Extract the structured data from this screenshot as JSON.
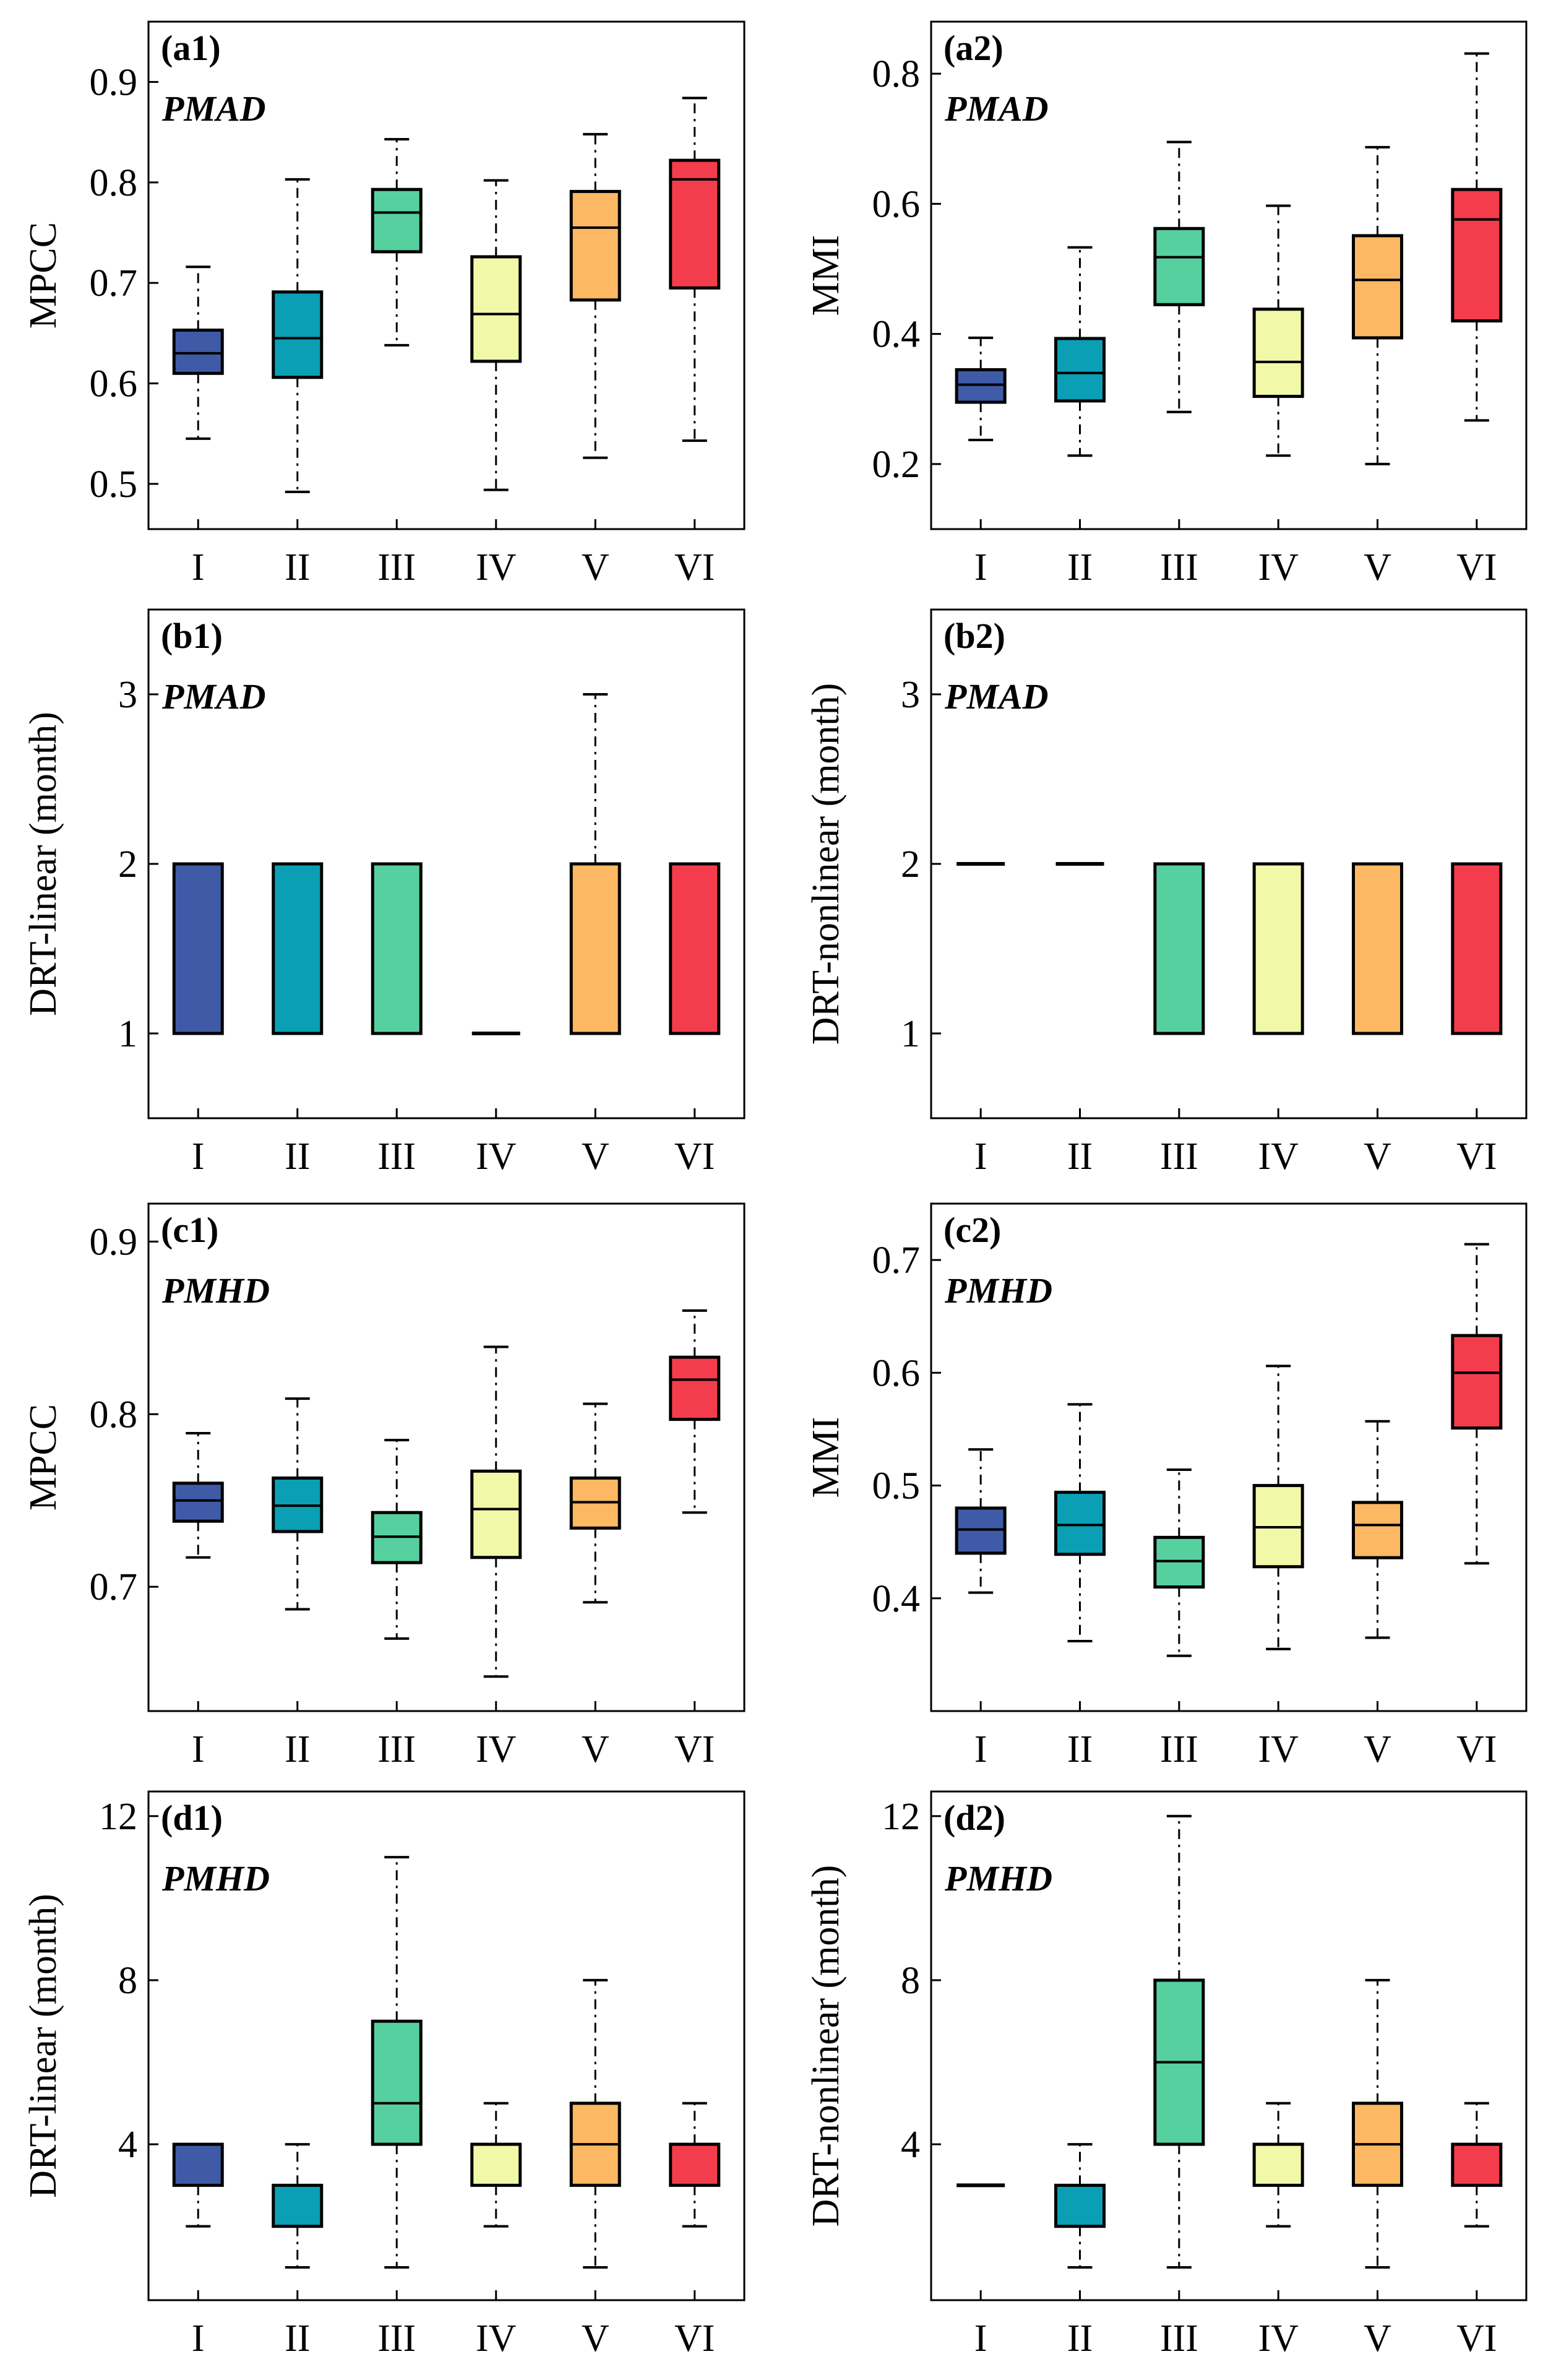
{
  "categories": [
    "I",
    "II",
    "III",
    "IV",
    "V",
    "VI"
  ],
  "colors": [
    "#3f5ba8",
    "#0b9fb5",
    "#57d09f",
    "#f1f8a8",
    "#fdb863",
    "#f43d4c"
  ],
  "chart_data": [
    {
      "type": "box",
      "panel_label": "(a1)",
      "series_label": "PMAD",
      "ylabel": "MPCC",
      "ylim": [
        0.455,
        0.96
      ],
      "yticks": [
        0.5,
        0.6,
        0.7,
        0.8,
        0.9
      ],
      "tick_labels": [
        "0.5",
        "0.6",
        "0.7",
        "0.8",
        "0.9"
      ],
      "categories": [
        "I",
        "II",
        "III",
        "IV",
        "V",
        "VI"
      ],
      "boxes": [
        {
          "min": 0.545,
          "q1": 0.61,
          "median": 0.63,
          "q3": 0.653,
          "max": 0.716
        },
        {
          "min": 0.492,
          "q1": 0.606,
          "median": 0.645,
          "q3": 0.691,
          "max": 0.803
        },
        {
          "min": 0.638,
          "q1": 0.731,
          "median": 0.77,
          "q3": 0.793,
          "max": 0.843
        },
        {
          "min": 0.494,
          "q1": 0.622,
          "median": 0.669,
          "q3": 0.726,
          "max": 0.802
        },
        {
          "min": 0.526,
          "q1": 0.683,
          "median": 0.755,
          "q3": 0.791,
          "max": 0.848
        },
        {
          "min": 0.543,
          "q1": 0.695,
          "median": 0.803,
          "q3": 0.822,
          "max": 0.884
        }
      ]
    },
    {
      "type": "box",
      "panel_label": "(a2)",
      "series_label": "PMAD",
      "ylabel": "MMI",
      "ylim": [
        0.1,
        0.88
      ],
      "yticks": [
        0.2,
        0.4,
        0.6,
        0.8
      ],
      "tick_labels": [
        "0.2",
        "0.4",
        "0.6",
        "0.8"
      ],
      "categories": [
        "I",
        "II",
        "III",
        "IV",
        "V",
        "VI"
      ],
      "boxes": [
        {
          "min": 0.237,
          "q1": 0.295,
          "median": 0.322,
          "q3": 0.345,
          "max": 0.394
        },
        {
          "min": 0.213,
          "q1": 0.297,
          "median": 0.34,
          "q3": 0.393,
          "max": 0.533
        },
        {
          "min": 0.28,
          "q1": 0.445,
          "median": 0.518,
          "q3": 0.562,
          "max": 0.695
        },
        {
          "min": 0.213,
          "q1": 0.304,
          "median": 0.357,
          "q3": 0.438,
          "max": 0.597
        },
        {
          "min": 0.2,
          "q1": 0.394,
          "median": 0.483,
          "q3": 0.551,
          "max": 0.687
        },
        {
          "min": 0.267,
          "q1": 0.42,
          "median": 0.576,
          "q3": 0.622,
          "max": 0.831
        }
      ]
    },
    {
      "type": "box",
      "panel_label": "(b1)",
      "series_label": "PMAD",
      "ylabel": "DRT-linear (month)",
      "ylim": [
        0.5,
        3.5
      ],
      "yticks": [
        1,
        2,
        3
      ],
      "tick_labels": [
        "1",
        "2",
        "3"
      ],
      "categories": [
        "I",
        "II",
        "III",
        "IV",
        "V",
        "VI"
      ],
      "boxes": [
        {
          "min": 1,
          "q1": 1,
          "median": 1,
          "q3": 2,
          "max": 2
        },
        {
          "min": 1,
          "q1": 1,
          "median": 1,
          "q3": 2,
          "max": 2
        },
        {
          "min": 1,
          "q1": 1,
          "median": 1,
          "q3": 2,
          "max": 2
        },
        {
          "min": 1,
          "q1": 1,
          "median": 1,
          "q3": 1,
          "max": 1
        },
        {
          "min": 1,
          "q1": 1,
          "median": 1,
          "q3": 2,
          "max": 3
        },
        {
          "min": 1,
          "q1": 1,
          "median": 1,
          "q3": 2,
          "max": 2
        }
      ]
    },
    {
      "type": "box",
      "panel_label": "(b2)",
      "series_label": "PMAD",
      "ylabel": "DRT-nonlinear (month)",
      "ylim": [
        0.5,
        3.5
      ],
      "yticks": [
        1,
        2,
        3
      ],
      "tick_labels": [
        "1",
        "2",
        "3"
      ],
      "categories": [
        "I",
        "II",
        "III",
        "IV",
        "V",
        "VI"
      ],
      "boxes": [
        {
          "min": 2,
          "q1": 2,
          "median": 2,
          "q3": 2,
          "max": 2
        },
        {
          "min": 2,
          "q1": 2,
          "median": 2,
          "q3": 2,
          "max": 2
        },
        {
          "min": 1,
          "q1": 1,
          "median": 1,
          "q3": 2,
          "max": 2
        },
        {
          "min": 1,
          "q1": 1,
          "median": 1,
          "q3": 2,
          "max": 2
        },
        {
          "min": 1,
          "q1": 1,
          "median": 1,
          "q3": 2,
          "max": 2
        },
        {
          "min": 1,
          "q1": 1,
          "median": 1,
          "q3": 2,
          "max": 2
        }
      ]
    },
    {
      "type": "box",
      "panel_label": "(c1)",
      "series_label": "PMHD",
      "ylabel": "MPCC",
      "ylim": [
        0.628,
        0.922
      ],
      "yticks": [
        0.7,
        0.8,
        0.9
      ],
      "tick_labels": [
        "0.7",
        "0.8",
        "0.9"
      ],
      "categories": [
        "I",
        "II",
        "III",
        "IV",
        "V",
        "VI"
      ],
      "boxes": [
        {
          "min": 0.717,
          "q1": 0.738,
          "median": 0.75,
          "q3": 0.76,
          "max": 0.789
        },
        {
          "min": 0.687,
          "q1": 0.732,
          "median": 0.747,
          "q3": 0.763,
          "max": 0.809
        },
        {
          "min": 0.67,
          "q1": 0.714,
          "median": 0.729,
          "q3": 0.743,
          "max": 0.785
        },
        {
          "min": 0.648,
          "q1": 0.717,
          "median": 0.745,
          "q3": 0.767,
          "max": 0.839
        },
        {
          "min": 0.691,
          "q1": 0.734,
          "median": 0.749,
          "q3": 0.763,
          "max": 0.806
        },
        {
          "min": 0.743,
          "q1": 0.797,
          "median": 0.82,
          "q3": 0.833,
          "max": 0.86
        }
      ]
    },
    {
      "type": "box",
      "panel_label": "(c2)",
      "series_label": "PMHD",
      "ylabel": "MMI",
      "ylim": [
        0.3,
        0.75
      ],
      "yticks": [
        0.4,
        0.5,
        0.6,
        0.7
      ],
      "tick_labels": [
        "0.4",
        "0.5",
        "0.6",
        "0.7"
      ],
      "categories": [
        "I",
        "II",
        "III",
        "IV",
        "V",
        "VI"
      ],
      "boxes": [
        {
          "min": 0.405,
          "q1": 0.44,
          "median": 0.461,
          "q3": 0.48,
          "max": 0.532
        },
        {
          "min": 0.362,
          "q1": 0.439,
          "median": 0.465,
          "q3": 0.494,
          "max": 0.572
        },
        {
          "min": 0.349,
          "q1": 0.41,
          "median": 0.433,
          "q3": 0.454,
          "max": 0.514
        },
        {
          "min": 0.355,
          "q1": 0.428,
          "median": 0.463,
          "q3": 0.5,
          "max": 0.606
        },
        {
          "min": 0.365,
          "q1": 0.436,
          "median": 0.465,
          "q3": 0.485,
          "max": 0.557
        },
        {
          "min": 0.431,
          "q1": 0.551,
          "median": 0.6,
          "q3": 0.633,
          "max": 0.714
        }
      ]
    },
    {
      "type": "box",
      "panel_label": "(d1)",
      "series_label": "PMHD",
      "ylabel": "DRT-linear (month)",
      "ylim": [
        0.2,
        12.6
      ],
      "yticks": [
        4,
        8,
        12
      ],
      "tick_labels": [
        "4",
        "8",
        "12"
      ],
      "categories": [
        "I",
        "II",
        "III",
        "IV",
        "V",
        "VI"
      ],
      "boxes": [
        {
          "min": 2,
          "q1": 3,
          "median": 3,
          "q3": 4,
          "max": 4
        },
        {
          "min": 1,
          "q1": 2,
          "median": 2,
          "q3": 3,
          "max": 4
        },
        {
          "min": 1,
          "q1": 4,
          "median": 5,
          "q3": 7,
          "max": 11
        },
        {
          "min": 2,
          "q1": 3,
          "median": 3,
          "q3": 4,
          "max": 5
        },
        {
          "min": 1,
          "q1": 3,
          "median": 4,
          "q3": 5,
          "max": 8
        },
        {
          "min": 2,
          "q1": 3,
          "median": 3,
          "q3": 4,
          "max": 5
        }
      ]
    },
    {
      "type": "box",
      "panel_label": "(d2)",
      "series_label": "PMHD",
      "ylabel": "DRT-nonlinear (month)",
      "ylim": [
        0.2,
        12.6
      ],
      "yticks": [
        4,
        8,
        12
      ],
      "tick_labels": [
        "4",
        "8",
        "12"
      ],
      "categories": [
        "I",
        "II",
        "III",
        "IV",
        "V",
        "VI"
      ],
      "boxes": [
        {
          "min": 3,
          "q1": 3,
          "median": 3,
          "q3": 3,
          "max": 3
        },
        {
          "min": 1,
          "q1": 2,
          "median": 2,
          "q3": 3,
          "max": 4
        },
        {
          "min": 1,
          "q1": 4,
          "median": 6,
          "q3": 8,
          "max": 12
        },
        {
          "min": 2,
          "q1": 3,
          "median": 3,
          "q3": 4,
          "max": 5
        },
        {
          "min": 1,
          "q1": 3,
          "median": 4,
          "q3": 5,
          "max": 8
        },
        {
          "min": 2,
          "q1": 3,
          "median": 3,
          "q3": 4,
          "max": 5
        }
      ]
    }
  ]
}
